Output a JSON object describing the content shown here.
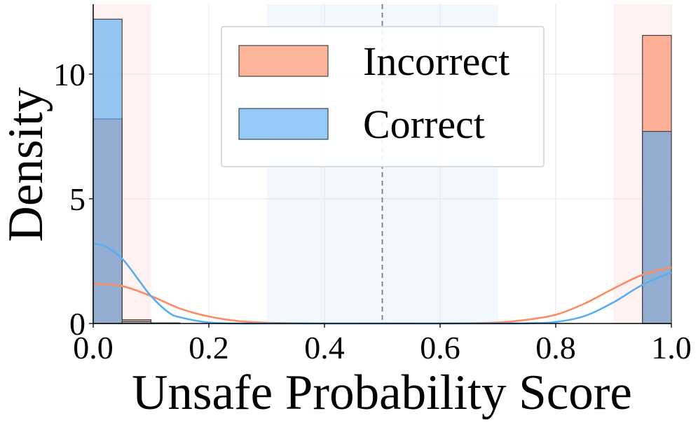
{
  "chart_data": {
    "type": "histogram",
    "xlabel": "Unsafe Probability Score",
    "ylabel": "Density",
    "xlim": [
      0.0,
      1.0
    ],
    "ylim": [
      0,
      12.8
    ],
    "xticks": [
      "0.0",
      "0.2",
      "0.4",
      "0.6",
      "0.8",
      "1.0"
    ],
    "xtick_values": [
      0.0,
      0.2,
      0.4,
      0.6,
      0.8,
      1.0
    ],
    "yticks": [
      "0",
      "5",
      "10"
    ],
    "ytick_values": [
      0,
      5,
      10
    ],
    "grid": true,
    "legend_position": "upper center",
    "threshold_line": 0.5,
    "shaded_regions": [
      {
        "x0": 0.0,
        "x1": 0.1,
        "color": "#fde8ea"
      },
      {
        "x0": 0.3,
        "x1": 0.7,
        "color": "#eaf3fd"
      },
      {
        "x0": 0.9,
        "x1": 1.0,
        "color": "#fde8ea"
      }
    ],
    "bin_edges": [
      0.0,
      0.05,
      0.1,
      0.15,
      0.2,
      0.25,
      0.3,
      0.35,
      0.4,
      0.45,
      0.5,
      0.55,
      0.6,
      0.65,
      0.7,
      0.75,
      0.8,
      0.85,
      0.9,
      0.95,
      1.0
    ],
    "series": [
      {
        "name": "Incorrect",
        "color": "#fc8d62",
        "bin_values": [
          8.2,
          0.15,
          0.02,
          0,
          0,
          0,
          0,
          0,
          0,
          0,
          0,
          0,
          0,
          0,
          0,
          0,
          0,
          0,
          0,
          11.55
        ],
        "kde_x": [
          0.0,
          0.05,
          0.1,
          0.15,
          0.2,
          0.25,
          0.3,
          0.35,
          0.4,
          0.5,
          0.6,
          0.65,
          0.7,
          0.75,
          0.8,
          0.85,
          0.9,
          0.95,
          1.0
        ],
        "kde_y": [
          1.6,
          1.5,
          1.1,
          0.6,
          0.28,
          0.1,
          0.03,
          0.01,
          0.0,
          0.0,
          0.0,
          0.01,
          0.04,
          0.15,
          0.35,
          0.8,
          1.4,
          1.95,
          2.25
        ]
      },
      {
        "name": "Correct",
        "color": "#5aaeef",
        "bin_values": [
          12.2,
          0.08,
          0.02,
          0,
          0,
          0,
          0,
          0,
          0,
          0,
          0,
          0,
          0,
          0,
          0,
          0,
          0,
          0,
          0,
          7.7
        ],
        "kde_x": [
          0.0,
          0.02,
          0.05,
          0.08,
          0.1,
          0.13,
          0.15,
          0.2,
          0.25,
          0.3,
          0.4,
          0.6,
          0.7,
          0.75,
          0.8,
          0.85,
          0.9,
          0.95,
          1.0
        ],
        "kde_y": [
          3.2,
          3.1,
          2.6,
          1.7,
          1.1,
          0.45,
          0.25,
          0.04,
          0.0,
          0.0,
          0.0,
          0.0,
          0.0,
          0.01,
          0.06,
          0.3,
          0.85,
          1.55,
          2.05
        ]
      }
    ]
  }
}
